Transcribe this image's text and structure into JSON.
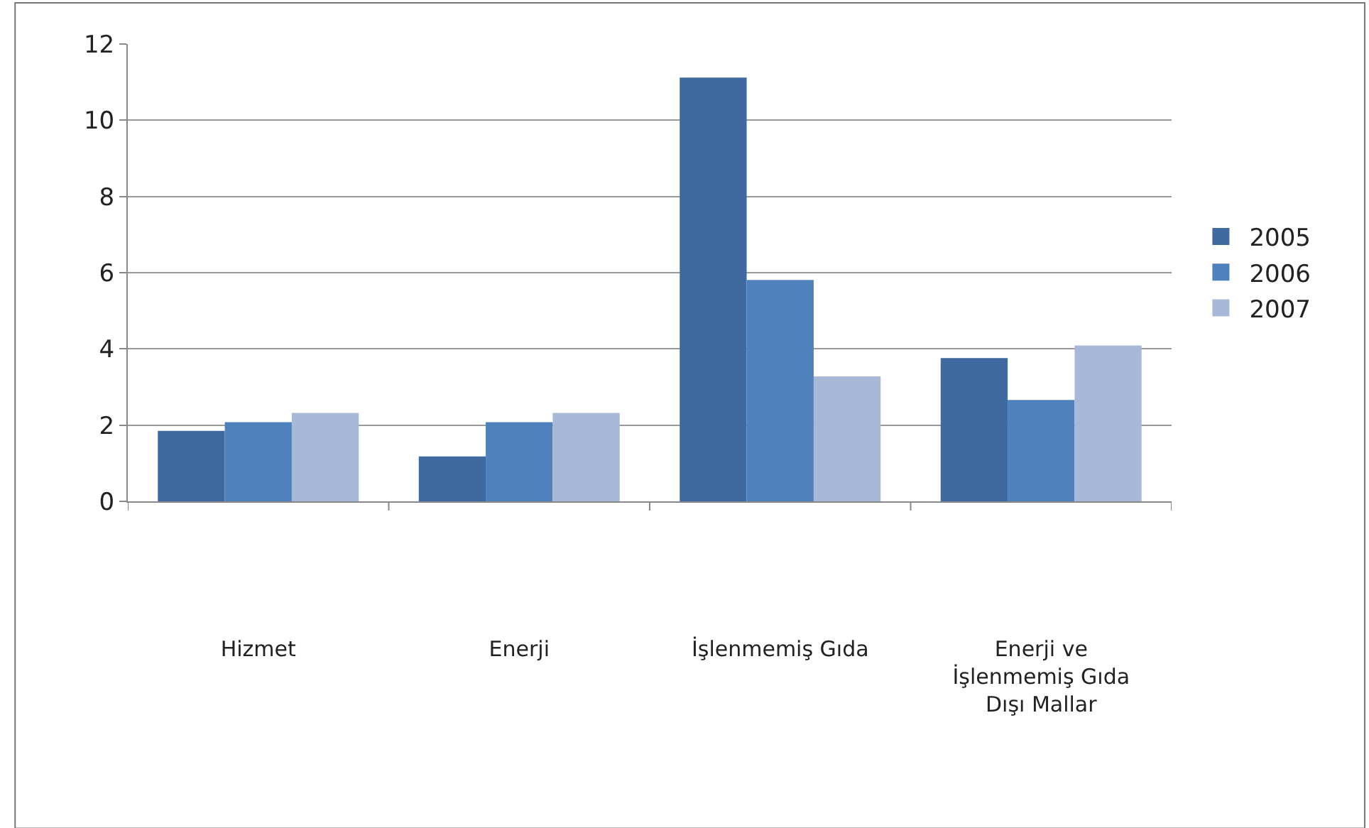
{
  "chart_data": {
    "type": "bar",
    "categories": [
      "Hizmet",
      "Enerji",
      "İşlenmemiş Gıda",
      "Enerji ve\nİşlenmemiş Gıda\nDışı Mallar"
    ],
    "series": [
      {
        "name": "2005",
        "color": "#3f6aa0",
        "values": [
          1.85,
          1.18,
          11.12,
          3.76
        ]
      },
      {
        "name": "2006",
        "color": "#4f81bd",
        "values": [
          2.08,
          2.08,
          5.81,
          2.66
        ]
      },
      {
        "name": "2007",
        "color": "#a8b9d8",
        "values": [
          2.32,
          2.32,
          3.28,
          4.09
        ]
      }
    ],
    "ylim": [
      0,
      12
    ],
    "yticks": [
      0,
      2,
      4,
      6,
      8,
      10,
      12
    ],
    "grid": "y",
    "legend": "right"
  }
}
